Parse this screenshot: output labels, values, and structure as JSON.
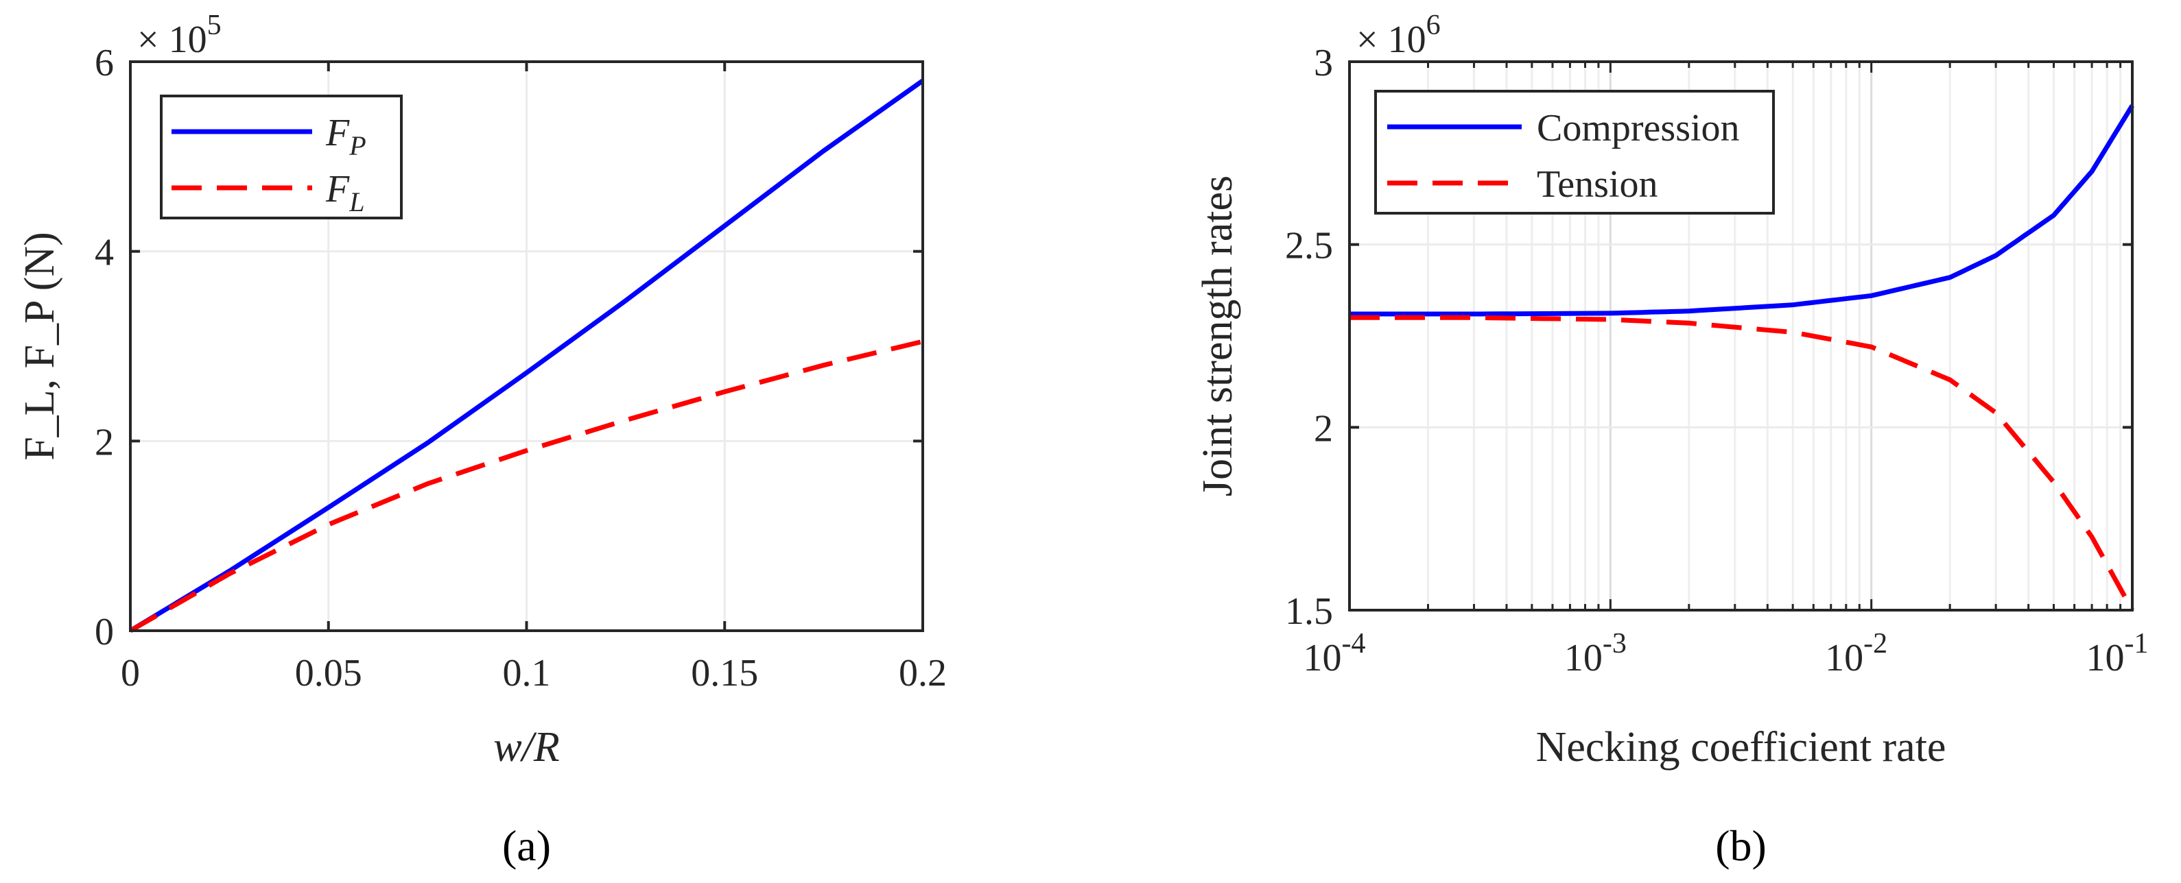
{
  "chart_data": [
    {
      "type": "line",
      "panel_caption": "(a)",
      "xlabel": "w/R",
      "ylabel": "F_L, F_P (N)",
      "y_exponent_label": "× 10",
      "y_exponent_power": "5",
      "xlim": [
        0,
        0.2
      ],
      "ylim": [
        0,
        6
      ],
      "y_scale_factor": 100000,
      "xticks": [
        0,
        0.05,
        0.1,
        0.15,
        0.2
      ],
      "xtick_labels": [
        "0",
        "0.05",
        "0.1",
        "0.15",
        "0.2"
      ],
      "yticks": [
        0,
        2,
        4,
        6
      ],
      "ytick_labels": [
        "0",
        "2",
        "4",
        "6"
      ],
      "grid": true,
      "legend_position": "top-left",
      "series": [
        {
          "name": "F_P",
          "legend_main": "F",
          "legend_sub": "P",
          "color": "#0000ff",
          "dash": "solid",
          "x": [
            0,
            0.025,
            0.05,
            0.075,
            0.1,
            0.125,
            0.15,
            0.175,
            0.2
          ],
          "y": [
            0,
            0.63,
            1.3,
            1.98,
            2.72,
            3.48,
            4.27,
            5.06,
            5.8
          ]
        },
        {
          "name": "F_L",
          "legend_main": "F",
          "legend_sub": "L",
          "color": "#ff0000",
          "dash": "dashed",
          "x": [
            0,
            0.025,
            0.05,
            0.075,
            0.1,
            0.125,
            0.15,
            0.175,
            0.2
          ],
          "y": [
            0,
            0.6,
            1.12,
            1.55,
            1.9,
            2.22,
            2.52,
            2.8,
            3.05
          ]
        }
      ]
    },
    {
      "type": "line",
      "panel_caption": "(b)",
      "xlabel": "Necking coefficient rate",
      "ylabel": "Joint strength rates",
      "y_exponent_label": "× 10",
      "y_exponent_power": "6",
      "x_scale": "log",
      "xlim": [
        0.0001,
        0.1
      ],
      "ylim": [
        1.5,
        3
      ],
      "y_scale_factor": 1000000,
      "xtick_bases": [
        "10",
        "10",
        "10",
        "10"
      ],
      "xtick_powers": [
        "-4",
        "-3",
        "-2",
        "-1"
      ],
      "yticks": [
        1.5,
        2,
        2.5,
        3
      ],
      "ytick_labels": [
        "1.5",
        "2",
        "2.5",
        "3"
      ],
      "grid": true,
      "legend_position": "top-left",
      "series": [
        {
          "name": "Compression",
          "color": "#0000ff",
          "dash": "solid",
          "x": [
            0.0001,
            0.0003,
            0.001,
            0.002,
            0.005,
            0.01,
            0.02,
            0.03,
            0.05,
            0.07,
            0.1
          ],
          "y": [
            2.31,
            2.31,
            2.312,
            2.318,
            2.335,
            2.36,
            2.41,
            2.47,
            2.58,
            2.7,
            2.88
          ]
        },
        {
          "name": "Tension",
          "color": "#ff0000",
          "dash": "dashed",
          "x": [
            0.0001,
            0.0003,
            0.001,
            0.002,
            0.005,
            0.01,
            0.02,
            0.03,
            0.05,
            0.07,
            0.1
          ],
          "y": [
            2.3,
            2.3,
            2.295,
            2.285,
            2.26,
            2.22,
            2.13,
            2.04,
            1.85,
            1.7,
            1.5
          ]
        }
      ]
    }
  ]
}
